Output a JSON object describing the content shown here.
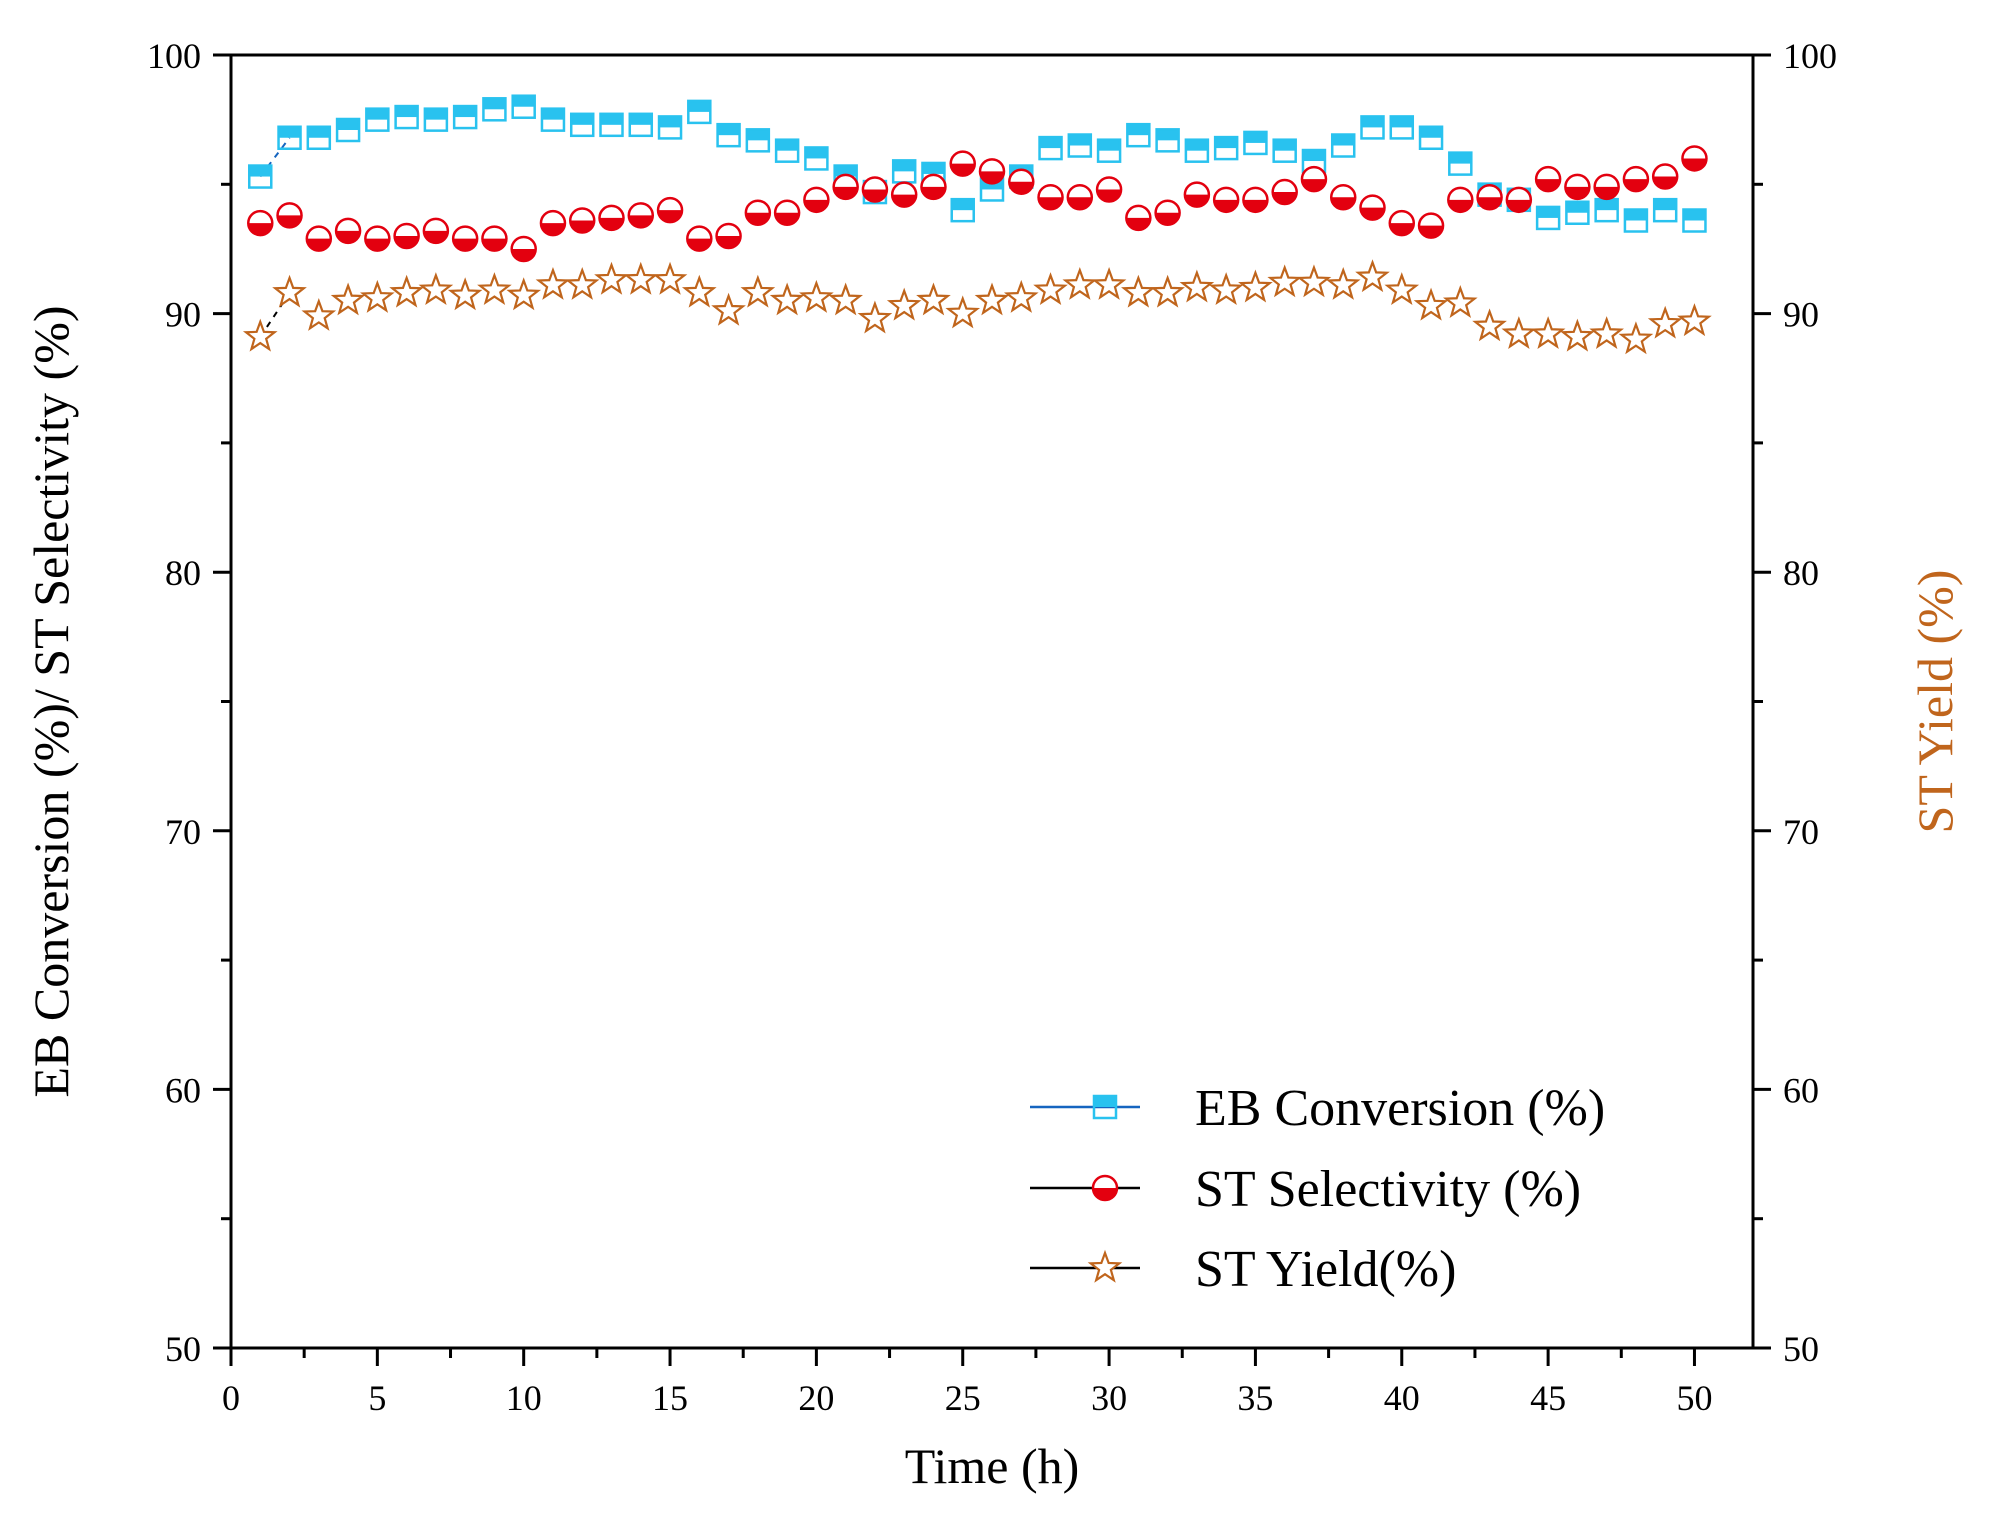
{
  "chart_data": {
    "type": "scatter",
    "xlabel": "Time (h)",
    "ylabel_left": "EB Conversion (%)/ ST Selectivity (%)",
    "ylabel_right": "ST Yield (%)",
    "xlim": [
      0,
      52
    ],
    "ylim": [
      50,
      100
    ],
    "x_ticks": [
      0,
      5,
      10,
      15,
      20,
      25,
      30,
      35,
      40,
      45,
      50
    ],
    "y_ticks": [
      50,
      60,
      70,
      80,
      90,
      100
    ],
    "grid": false,
    "legend_position": "bottom-right",
    "colors": {
      "axis": "#000000",
      "eb": "#29c2ef",
      "eb_line": "#1565c0",
      "st_sel": "#e3000f",
      "st_yield": "#c0651c",
      "right_label": "#c0651c"
    },
    "x": [
      1,
      2,
      3,
      4,
      5,
      6,
      7,
      8,
      9,
      10,
      11,
      12,
      13,
      14,
      15,
      16,
      17,
      18,
      19,
      20,
      21,
      22,
      23,
      24,
      25,
      26,
      27,
      28,
      29,
      30,
      31,
      32,
      33,
      34,
      35,
      36,
      37,
      38,
      39,
      40,
      41,
      42,
      43,
      44,
      45,
      46,
      47,
      48,
      49,
      50
    ],
    "series": [
      {
        "name": "EB Conversion (%)",
        "marker": "half-filled-square",
        "values": [
          95.3,
          96.8,
          96.8,
          97.1,
          97.5,
          97.6,
          97.5,
          97.6,
          97.9,
          98.0,
          97.5,
          97.3,
          97.3,
          97.3,
          97.2,
          97.8,
          96.9,
          96.7,
          96.3,
          96.0,
          95.3,
          94.7,
          95.5,
          95.4,
          94.0,
          94.8,
          95.3,
          96.4,
          96.5,
          96.3,
          96.9,
          96.7,
          96.3,
          96.4,
          96.6,
          96.3,
          95.9,
          96.5,
          97.2,
          97.2,
          96.8,
          95.8,
          94.6,
          94.4,
          93.7,
          93.9,
          94.0,
          93.6,
          94.0,
          93.6
        ]
      },
      {
        "name": "ST Selectivity (%)",
        "marker": "half-filled-circle",
        "values": [
          93.5,
          93.8,
          92.9,
          93.2,
          92.9,
          93.0,
          93.2,
          92.9,
          92.9,
          92.5,
          93.5,
          93.6,
          93.7,
          93.8,
          94.0,
          92.9,
          93.0,
          93.9,
          93.9,
          94.4,
          94.9,
          94.8,
          94.6,
          94.9,
          95.8,
          95.5,
          95.1,
          94.5,
          94.5,
          94.8,
          93.7,
          93.9,
          94.6,
          94.4,
          94.4,
          94.7,
          95.2,
          94.5,
          94.1,
          93.5,
          93.4,
          94.4,
          94.5,
          94.4,
          95.2,
          94.9,
          94.9,
          95.2,
          95.3,
          96.0
        ]
      },
      {
        "name": "ST Yield(%)",
        "marker": "open-star",
        "values": [
          89.1,
          90.8,
          89.9,
          90.5,
          90.6,
          90.8,
          90.9,
          90.7,
          90.9,
          90.7,
          91.1,
          91.1,
          91.3,
          91.3,
          91.3,
          90.8,
          90.1,
          90.8,
          90.5,
          90.6,
          90.5,
          89.8,
          90.3,
          90.5,
          90.0,
          90.5,
          90.6,
          90.9,
          91.1,
          91.1,
          90.8,
          90.8,
          91.0,
          90.9,
          91.0,
          91.2,
          91.2,
          91.1,
          91.4,
          90.9,
          90.3,
          90.4,
          89.5,
          89.2,
          89.2,
          89.1,
          89.2,
          89.0,
          89.6,
          89.7
        ]
      }
    ],
    "legend": [
      {
        "label": "EB Conversion (%)",
        "marker": "half-filled-square"
      },
      {
        "label": "ST Selectivity (%)",
        "marker": "half-filled-circle"
      },
      {
        "label": "ST Yield(%)",
        "marker": "open-star"
      }
    ]
  }
}
